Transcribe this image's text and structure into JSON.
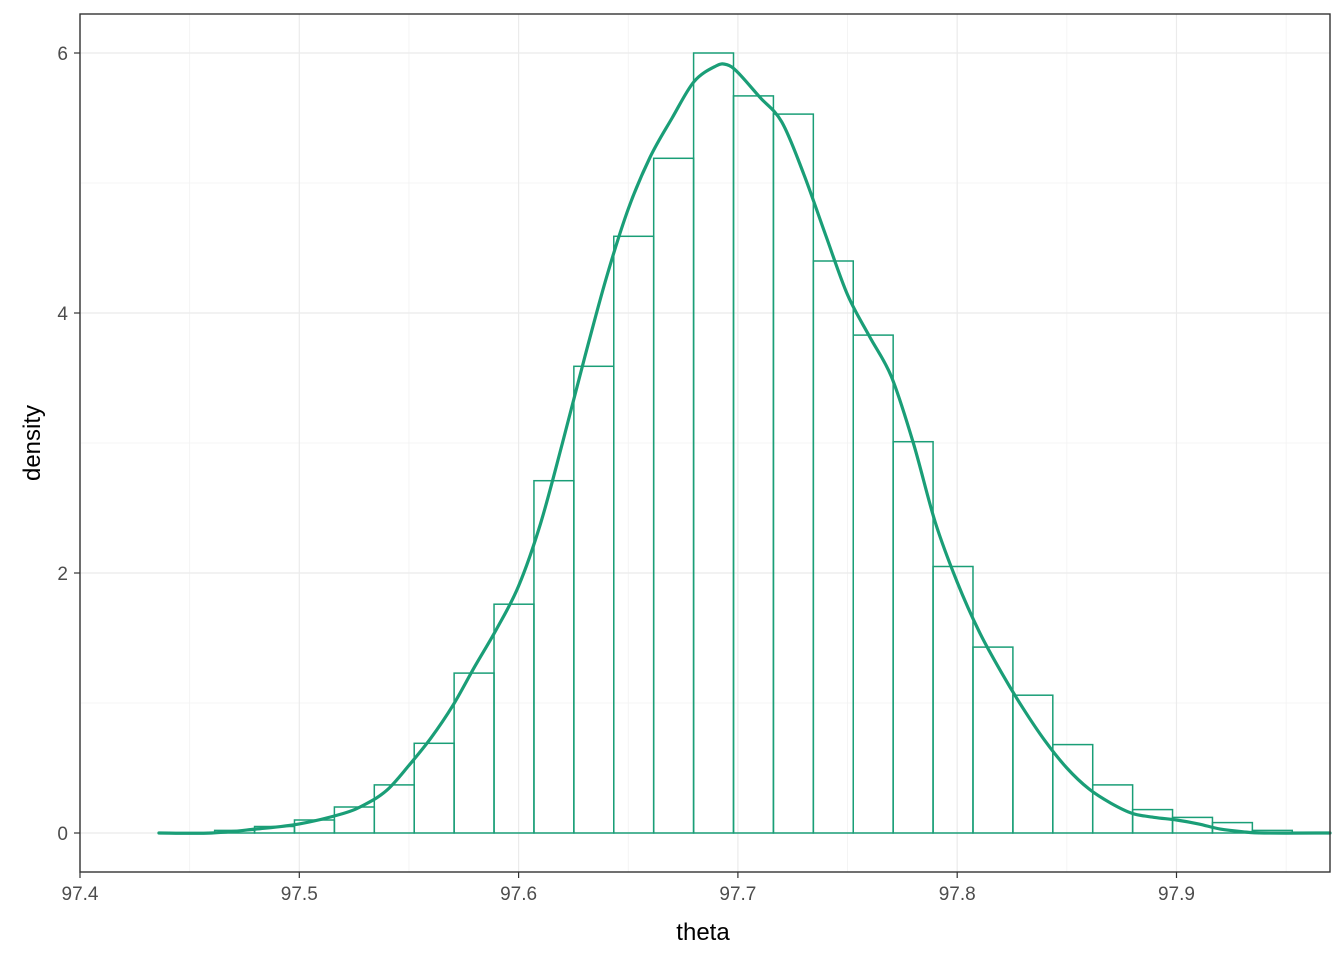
{
  "chart_data": {
    "type": "bar",
    "xlabel": "theta",
    "ylabel": "density",
    "xlim": [
      97.4,
      97.97
    ],
    "ylim": [
      -0.3,
      6.3
    ],
    "x_ticks": [
      97.4,
      97.5,
      97.6,
      97.7,
      97.8,
      97.9
    ],
    "x_tick_labels": [
      "97.4",
      "97.5",
      "97.6",
      "97.7",
      "97.8",
      "97.9"
    ],
    "y_ticks": [
      0,
      2,
      4,
      6
    ],
    "y_tick_labels": [
      "0",
      "2",
      "4",
      "6"
    ],
    "grid": true,
    "color": "#1a9e77",
    "histogram": {
      "bin_start": 97.425,
      "bin_width": 0.0182,
      "densities": [
        0.0,
        0.0,
        0.02,
        0.05,
        0.1,
        0.2,
        0.37,
        0.69,
        1.23,
        1.76,
        2.71,
        3.59,
        4.59,
        5.19,
        6.0,
        5.67,
        5.53,
        4.4,
        3.83,
        3.01,
        2.05,
        1.43,
        1.06,
        0.68,
        0.37,
        0.18,
        0.12,
        0.08,
        0.02,
        0.0
      ]
    },
    "density_curve": {
      "x": [
        97.436,
        97.46,
        97.48,
        97.5,
        97.52,
        97.53,
        97.54,
        97.55,
        97.56,
        97.57,
        97.58,
        97.59,
        97.6,
        97.61,
        97.62,
        97.63,
        97.64,
        97.65,
        97.66,
        97.67,
        97.68,
        97.69,
        97.695,
        97.7,
        97.71,
        97.72,
        97.73,
        97.74,
        97.75,
        97.76,
        97.77,
        97.78,
        97.79,
        97.8,
        97.81,
        97.82,
        97.83,
        97.84,
        97.85,
        97.86,
        97.87,
        97.88,
        97.89,
        97.9,
        97.91,
        97.92,
        97.93,
        97.94,
        97.97
      ],
      "y": [
        0.0,
        0.0,
        0.03,
        0.07,
        0.15,
        0.22,
        0.33,
        0.52,
        0.73,
        0.98,
        1.28,
        1.57,
        1.9,
        2.38,
        3.0,
        3.65,
        4.27,
        4.8,
        5.2,
        5.5,
        5.78,
        5.9,
        5.91,
        5.85,
        5.66,
        5.47,
        5.07,
        4.6,
        4.14,
        3.82,
        3.51,
        3.0,
        2.39,
        1.93,
        1.55,
        1.24,
        0.96,
        0.71,
        0.5,
        0.34,
        0.23,
        0.15,
        0.12,
        0.1,
        0.07,
        0.03,
        0.01,
        0.0,
        0.0
      ]
    }
  }
}
